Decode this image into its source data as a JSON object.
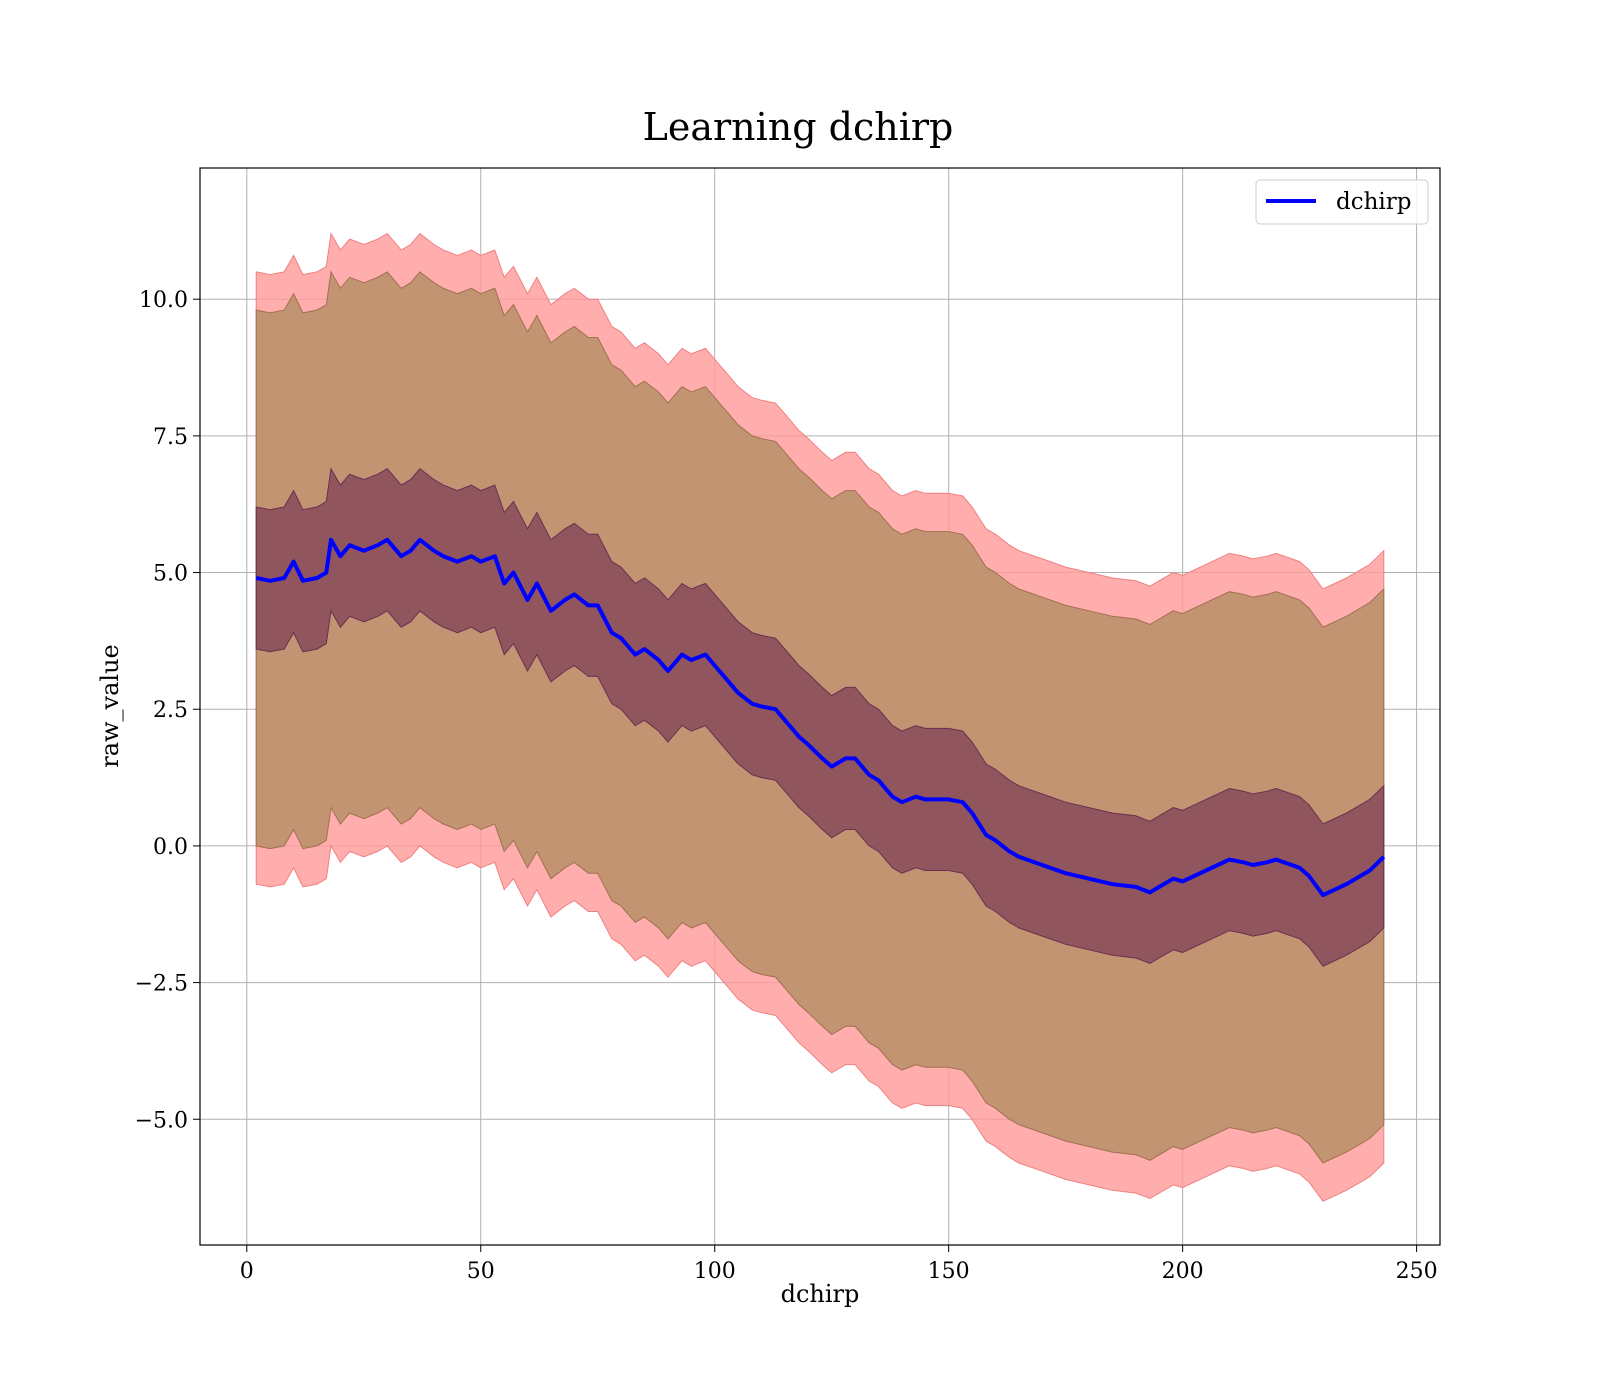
{
  "chart_data": {
    "type": "line",
    "title": "Learning dchirp",
    "xlabel": "dchirp",
    "ylabel": "raw_value",
    "xlim": [
      -10,
      255
    ],
    "ylim": [
      -7.3,
      12.4
    ],
    "xticks": [
      0,
      50,
      100,
      150,
      200,
      250
    ],
    "xtick_labels": [
      "0",
      "50",
      "100",
      "150",
      "200",
      "250"
    ],
    "yticks": [
      -5.0,
      -2.5,
      0.0,
      2.5,
      5.0,
      7.5,
      10.0
    ],
    "ytick_labels": [
      "−5.0",
      "−2.5",
      "0.0",
      "2.5",
      "5.0",
      "7.5",
      "10.0"
    ],
    "grid": true,
    "legend": {
      "position": "top-right",
      "entries": [
        "dchirp"
      ]
    },
    "colors": {
      "line": "#0000ff",
      "band_outer": "#ff9999",
      "band_mid": "#b98f66",
      "band_inner": "#7a3a55",
      "grid": "#b0b0b0"
    },
    "series": [
      {
        "name": "dchirp",
        "x": [
          2,
          5,
          8,
          10,
          12,
          15,
          17,
          18,
          20,
          22,
          25,
          28,
          30,
          33,
          35,
          37,
          40,
          42,
          45,
          48,
          50,
          53,
          55,
          57,
          60,
          62,
          65,
          68,
          70,
          73,
          75,
          78,
          80,
          83,
          85,
          88,
          90,
          93,
          95,
          98,
          100,
          103,
          105,
          108,
          110,
          113,
          115,
          118,
          120,
          123,
          125,
          128,
          130,
          133,
          135,
          138,
          140,
          143,
          145,
          148,
          150,
          153,
          155,
          158,
          160,
          163,
          165,
          170,
          175,
          180,
          185,
          190,
          193,
          195,
          198,
          200,
          205,
          210,
          213,
          215,
          218,
          220,
          225,
          227,
          230,
          235,
          240,
          243
        ],
        "y": [
          4.9,
          4.85,
          4.9,
          5.2,
          4.85,
          4.9,
          5.0,
          5.6,
          5.3,
          5.5,
          5.4,
          5.5,
          5.6,
          5.3,
          5.4,
          5.6,
          5.4,
          5.3,
          5.2,
          5.3,
          5.2,
          5.3,
          4.8,
          5.0,
          4.5,
          4.8,
          4.3,
          4.5,
          4.6,
          4.4,
          4.4,
          3.9,
          3.8,
          3.5,
          3.6,
          3.4,
          3.2,
          3.5,
          3.4,
          3.5,
          3.3,
          3.0,
          2.8,
          2.6,
          2.55,
          2.5,
          2.3,
          2.0,
          1.85,
          1.6,
          1.45,
          1.6,
          1.6,
          1.3,
          1.2,
          0.9,
          0.8,
          0.9,
          0.85,
          0.85,
          0.85,
          0.8,
          0.6,
          0.2,
          0.1,
          -0.1,
          -0.2,
          -0.35,
          -0.5,
          -0.6,
          -0.7,
          -0.75,
          -0.85,
          -0.75,
          -0.6,
          -0.65,
          -0.45,
          -0.25,
          -0.3,
          -0.35,
          -0.3,
          -0.25,
          -0.4,
          -0.55,
          -0.9,
          -0.7,
          -0.45,
          -0.2
        ]
      }
    ],
    "bands": {
      "inner_half_width": 1.3,
      "mid_half_width": 4.9,
      "outer_half_width": 5.6
    }
  }
}
